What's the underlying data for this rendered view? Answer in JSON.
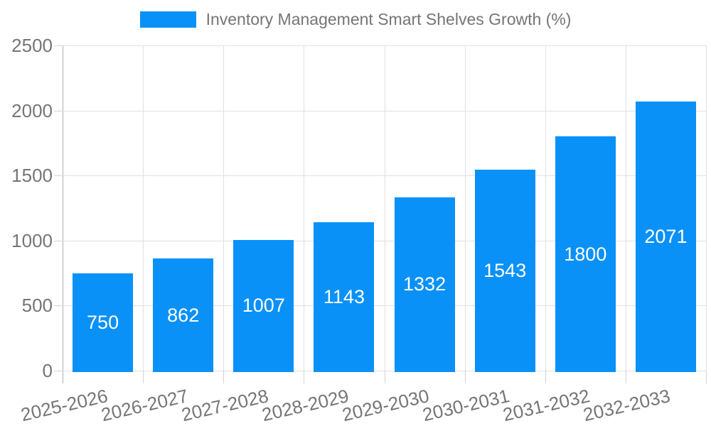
{
  "legend": {
    "label": "Inventory Management Smart Shelves Growth (%)"
  },
  "chart_data": {
    "type": "bar",
    "title": "Inventory Management Smart Shelves Growth (%)",
    "categories": [
      "2025-2026",
      "2026-2027",
      "2027-2028",
      "2028-2029",
      "2029-2030",
      "2030-2031",
      "2031-2032",
      "2032-2033"
    ],
    "values": [
      750,
      862,
      1007,
      1143,
      1332,
      1543,
      1800,
      2071
    ],
    "xlabel": "",
    "ylabel": "",
    "ylim": [
      0,
      2500
    ],
    "yticks": [
      0,
      500,
      1000,
      1500,
      2000,
      2500
    ],
    "grid": true,
    "legend_position": "top-center",
    "colors": {
      "bar": "#0991f8",
      "bar_label": "#ffffff",
      "axis_text": "#757575",
      "gridline": "#e0e0e0",
      "axis_line": "#b0b0b0",
      "tick": "#d4d4d4",
      "background": "#ffffff"
    }
  }
}
